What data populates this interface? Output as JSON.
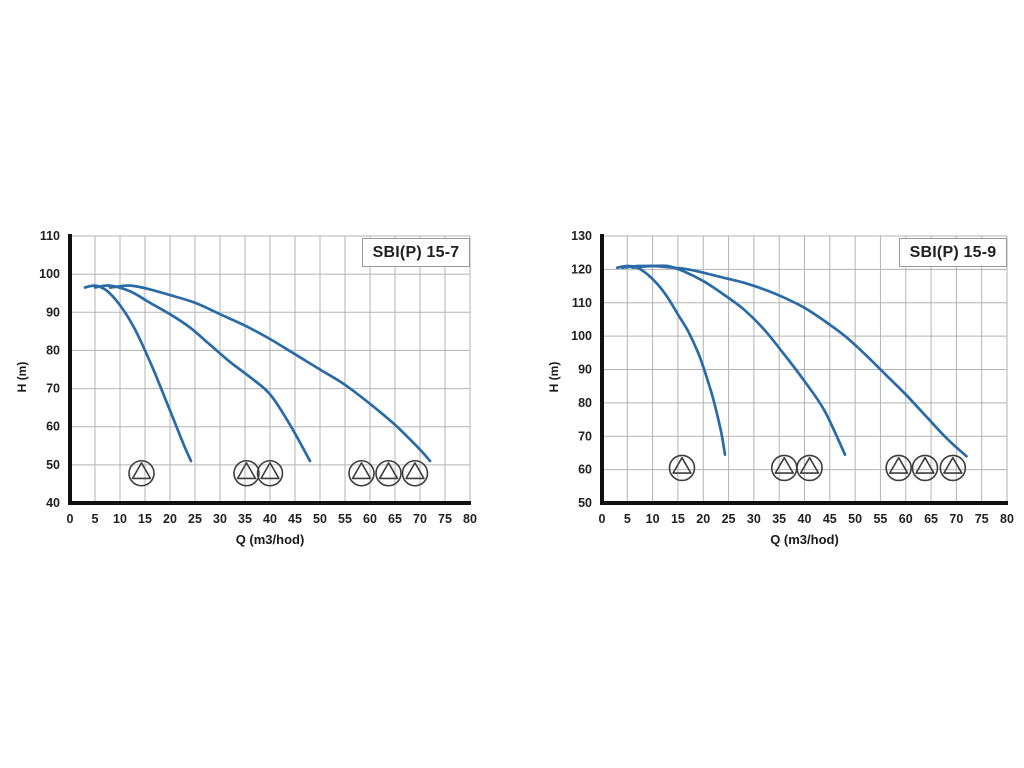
{
  "page": {
    "background": "#ffffff"
  },
  "chart_data": [
    {
      "type": "line",
      "title": "SBI(P) 15-7",
      "xlabel": "Q (m3/hod)",
      "ylabel": "H (m)",
      "xlim": [
        0,
        80
      ],
      "xtick_step": 5,
      "ylim": [
        40,
        110
      ],
      "ytick_step": 10,
      "grid": true,
      "legend_position": "none",
      "curve_color": "#2a6ba6",
      "grid_color": "#b3b3b3",
      "axis_color": "#111111",
      "series": [
        {
          "name": "1 pump",
          "points": [
            [
              3,
              96.5
            ],
            [
              5,
              97
            ],
            [
              7,
              96
            ],
            [
              9,
              93.5
            ],
            [
              11,
              90
            ],
            [
              13,
              85.5
            ],
            [
              15,
              80
            ],
            [
              17,
              74
            ],
            [
              19,
              67.5
            ],
            [
              21,
              61
            ],
            [
              23,
              54.5
            ],
            [
              24.2,
              51
            ]
          ]
        },
        {
          "name": "2 pumps",
          "points": [
            [
              5,
              96.5
            ],
            [
              8,
              97
            ],
            [
              12,
              95.5
            ],
            [
              16,
              92.5
            ],
            [
              20,
              89.5
            ],
            [
              24,
              86
            ],
            [
              28,
              81.5
            ],
            [
              32,
              77
            ],
            [
              36,
              73
            ],
            [
              40,
              68.5
            ],
            [
              44,
              60.5
            ],
            [
              48,
              51
            ]
          ]
        },
        {
          "name": "3 pumps",
          "points": [
            [
              8,
              96.5
            ],
            [
              12,
              97
            ],
            [
              16,
              96
            ],
            [
              20,
              94.5
            ],
            [
              25,
              92.5
            ],
            [
              30,
              89.5
            ],
            [
              35,
              86.5
            ],
            [
              40,
              83
            ],
            [
              45,
              79
            ],
            [
              50,
              75
            ],
            [
              55,
              71
            ],
            [
              60,
              66
            ],
            [
              65,
              60.5
            ],
            [
              70,
              54
            ],
            [
              72,
              51
            ]
          ]
        }
      ],
      "pump_icons": {
        "h": 47.8,
        "groups": [
          [
            14.3
          ],
          [
            35.3,
            40
          ],
          [
            58.3,
            63.7,
            69
          ]
        ]
      }
    },
    {
      "type": "line",
      "title": "SBI(P) 15-9",
      "xlabel": "Q (m3/hod)",
      "ylabel": "H (m)",
      "xlim": [
        0,
        80
      ],
      "xtick_step": 5,
      "ylim": [
        50,
        130
      ],
      "ytick_step": 10,
      "grid": true,
      "legend_position": "none",
      "curve_color": "#2a6ba6",
      "grid_color": "#b3b3b3",
      "axis_color": "#111111",
      "series": [
        {
          "name": "1 pump",
          "points": [
            [
              3,
              120.5
            ],
            [
              5,
              121
            ],
            [
              7,
              120.5
            ],
            [
              9,
              118.5
            ],
            [
              11,
              115.5
            ],
            [
              13,
              111.5
            ],
            [
              15,
              106.5
            ],
            [
              17,
              101.5
            ],
            [
              19,
              95
            ],
            [
              20.5,
              88.5
            ],
            [
              22,
              81
            ],
            [
              23.5,
              71.5
            ],
            [
              24.3,
              64.5
            ]
          ]
        },
        {
          "name": "2 pumps",
          "points": [
            [
              4,
              120.5
            ],
            [
              7,
              121
            ],
            [
              10,
              121
            ],
            [
              13,
              121
            ],
            [
              16,
              119.5
            ],
            [
              20,
              116.5
            ],
            [
              24,
              112.5
            ],
            [
              28,
              108
            ],
            [
              32,
              102
            ],
            [
              36,
              94.5
            ],
            [
              40,
              86.5
            ],
            [
              44,
              77.5
            ],
            [
              48,
              64.5
            ]
          ]
        },
        {
          "name": "3 pumps",
          "points": [
            [
              6,
              120.5
            ],
            [
              10,
              121
            ],
            [
              14,
              120.5
            ],
            [
              17,
              120
            ],
            [
              20,
              119
            ],
            [
              24,
              117.5
            ],
            [
              28,
              116
            ],
            [
              32,
              114
            ],
            [
              36,
              111.5
            ],
            [
              40,
              108.5
            ],
            [
              44,
              104.5
            ],
            [
              48,
              100
            ],
            [
              52,
              94.5
            ],
            [
              56,
              88.5
            ],
            [
              60,
              82.5
            ],
            [
              64,
              76
            ],
            [
              68,
              69.5
            ],
            [
              72,
              64
            ]
          ]
        }
      ],
      "pump_icons": {
        "h": 60.5,
        "groups": [
          [
            15.8
          ],
          [
            36,
            41
          ],
          [
            58.6,
            63.8,
            69.3
          ]
        ]
      }
    }
  ]
}
